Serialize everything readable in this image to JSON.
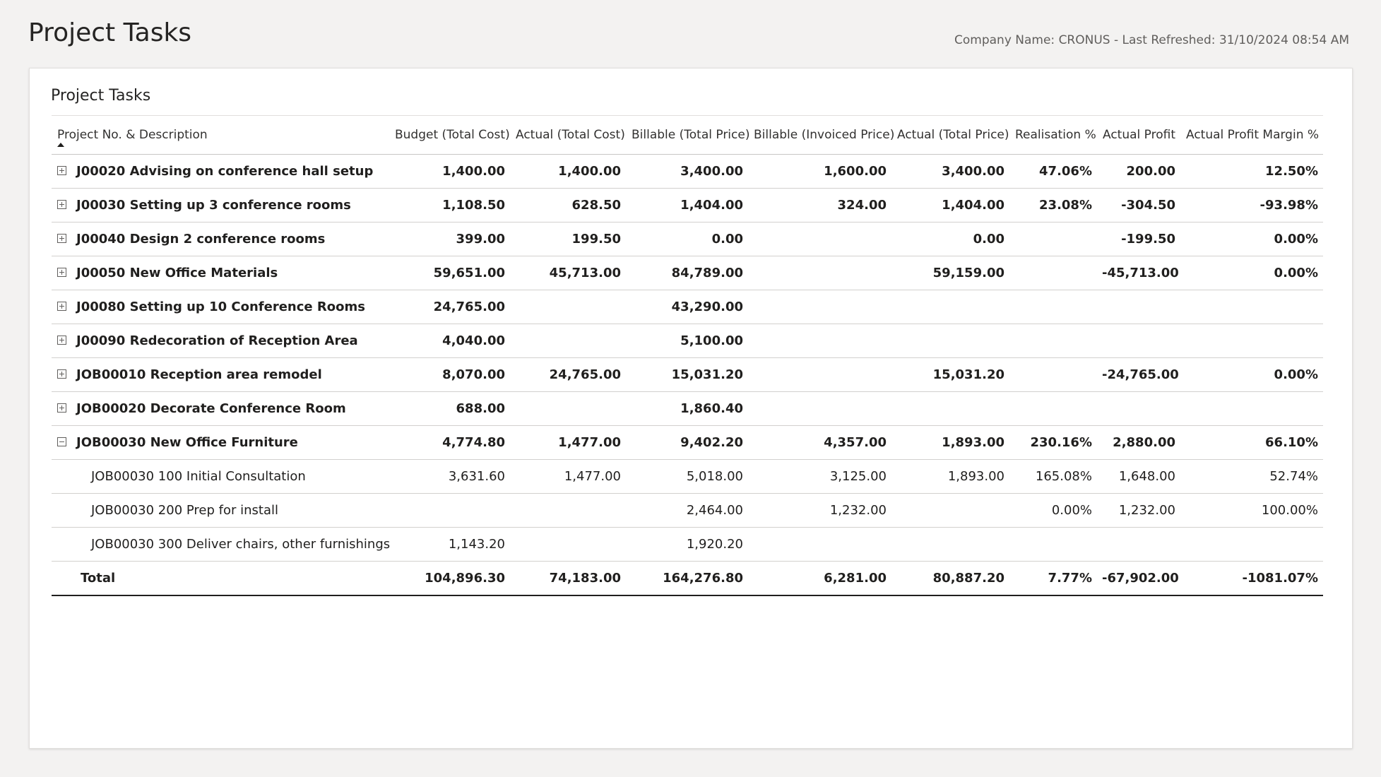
{
  "page": {
    "title": "Project Tasks",
    "meta": "Company Name: CRONUS - Last Refreshed: 31/10/2024 08:54 AM"
  },
  "card": {
    "title": "Project Tasks"
  },
  "table": {
    "columns": [
      "Project No. & Description",
      "Budget (Total Cost)",
      "Actual (Total Cost)",
      "Billable (Total Price)",
      "Billable (Invoiced Price)",
      "Actual (Total Price)",
      "Realisation %",
      "Actual Profit",
      "Actual Profit Margin %"
    ],
    "sort": {
      "column": "Project No. & Description",
      "direction": "ascending"
    },
    "rows": [
      {
        "type": "parent",
        "expanded": false,
        "label": "J00020 Advising on conference hall setup",
        "cells": [
          "1,400.00",
          "1,400.00",
          "3,400.00",
          "1,600.00",
          "3,400.00",
          "47.06%",
          "200.00",
          "12.50%"
        ]
      },
      {
        "type": "parent",
        "expanded": false,
        "label": "J00030 Setting up 3 conference rooms",
        "cells": [
          "1,108.50",
          "628.50",
          "1,404.00",
          "324.00",
          "1,404.00",
          "23.08%",
          "-304.50",
          "-93.98%"
        ]
      },
      {
        "type": "parent",
        "expanded": false,
        "label": "J00040 Design 2 conference rooms",
        "cells": [
          "399.00",
          "199.50",
          "0.00",
          "",
          "0.00",
          "",
          "-199.50",
          "0.00%"
        ]
      },
      {
        "type": "parent",
        "expanded": false,
        "label": "J00050 New Office Materials",
        "cells": [
          "59,651.00",
          "45,713.00",
          "84,789.00",
          "",
          "59,159.00",
          "",
          "-45,713.00",
          "0.00%"
        ]
      },
      {
        "type": "parent",
        "expanded": false,
        "label": "J00080 Setting up 10 Conference Rooms",
        "cells": [
          "24,765.00",
          "",
          "43,290.00",
          "",
          "",
          "",
          "",
          ""
        ]
      },
      {
        "type": "parent",
        "expanded": false,
        "label": "J00090 Redecoration of Reception Area",
        "cells": [
          "4,040.00",
          "",
          "5,100.00",
          "",
          "",
          "",
          "",
          ""
        ]
      },
      {
        "type": "parent",
        "expanded": false,
        "label": "JOB00010 Reception area remodel",
        "cells": [
          "8,070.00",
          "24,765.00",
          "15,031.20",
          "",
          "15,031.20",
          "",
          "-24,765.00",
          "0.00%"
        ]
      },
      {
        "type": "parent",
        "expanded": false,
        "label": "JOB00020 Decorate Conference Room",
        "cells": [
          "688.00",
          "",
          "1,860.40",
          "",
          "",
          "",
          "",
          ""
        ]
      },
      {
        "type": "parent",
        "expanded": true,
        "label": "JOB00030 New Office Furniture",
        "cells": [
          "4,774.80",
          "1,477.00",
          "9,402.20",
          "4,357.00",
          "1,893.00",
          "230.16%",
          "2,880.00",
          "66.10%"
        ]
      },
      {
        "type": "child",
        "label": "JOB00030 100 Initial Consultation",
        "cells": [
          "3,631.60",
          "1,477.00",
          "5,018.00",
          "3,125.00",
          "1,893.00",
          "165.08%",
          "1,648.00",
          "52.74%"
        ]
      },
      {
        "type": "child",
        "label": "JOB00030 200 Prep for install",
        "cells": [
          "",
          "",
          "2,464.00",
          "1,232.00",
          "",
          "0.00%",
          "1,232.00",
          "100.00%"
        ]
      },
      {
        "type": "child",
        "label": "JOB00030 300 Deliver chairs, other furnishings",
        "cells": [
          "1,143.20",
          "",
          "1,920.20",
          "",
          "",
          "",
          "",
          ""
        ]
      },
      {
        "type": "total",
        "label": "Total",
        "cells": [
          "104,896.30",
          "74,183.00",
          "164,276.80",
          "6,281.00",
          "80,887.20",
          "7.77%",
          "-67,902.00",
          "-1081.07%"
        ]
      }
    ]
  }
}
